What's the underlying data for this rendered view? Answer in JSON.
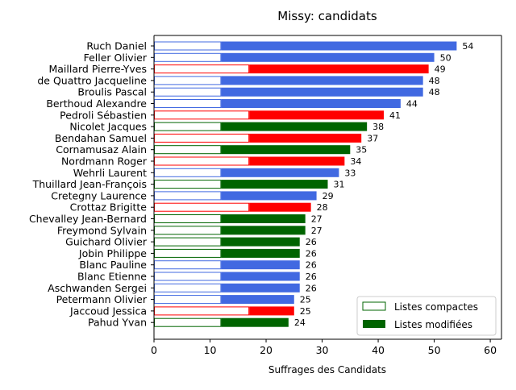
{
  "chart_data": {
    "type": "bar",
    "orientation": "horizontal",
    "stacked": true,
    "title": "Missy: candidats",
    "xlabel": "Suffrages des Candidats",
    "xlim": [
      0,
      62
    ],
    "x_ticks": [
      "0",
      "10",
      "20",
      "30",
      "40",
      "50",
      "60"
    ],
    "grid": false,
    "legend_position": "lower right",
    "legend": {
      "compact_label": "Listes compactes",
      "modified_label": "Listes modifiées"
    },
    "candidates": [
      {
        "name": "Ruch Daniel",
        "compact": 12,
        "total": 54,
        "color": "#4169e1"
      },
      {
        "name": "Feller Olivier",
        "compact": 12,
        "total": 50,
        "color": "#4169e1"
      },
      {
        "name": "Maillard Pierre-Yves",
        "compact": 17,
        "total": 49,
        "color": "#ff0000"
      },
      {
        "name": "de Quattro Jacqueline",
        "compact": 12,
        "total": 48,
        "color": "#4169e1"
      },
      {
        "name": "Broulis Pascal",
        "compact": 12,
        "total": 48,
        "color": "#4169e1"
      },
      {
        "name": "Berthoud Alexandre",
        "compact": 12,
        "total": 44,
        "color": "#4169e1"
      },
      {
        "name": "Pedroli Sébastien",
        "compact": 17,
        "total": 41,
        "color": "#ff0000"
      },
      {
        "name": "Nicolet Jacques",
        "compact": 12,
        "total": 38,
        "color": "#006400"
      },
      {
        "name": "Bendahan Samuel",
        "compact": 17,
        "total": 37,
        "color": "#ff0000"
      },
      {
        "name": "Cornamusaz Alain",
        "compact": 12,
        "total": 35,
        "color": "#006400"
      },
      {
        "name": "Nordmann Roger",
        "compact": 17,
        "total": 34,
        "color": "#ff0000"
      },
      {
        "name": "Wehrli Laurent",
        "compact": 12,
        "total": 33,
        "color": "#4169e1"
      },
      {
        "name": "Thuillard Jean-François",
        "compact": 12,
        "total": 31,
        "color": "#006400"
      },
      {
        "name": "Cretegny Laurence",
        "compact": 12,
        "total": 29,
        "color": "#4169e1"
      },
      {
        "name": "Crottaz Brigitte",
        "compact": 17,
        "total": 28,
        "color": "#ff0000"
      },
      {
        "name": "Chevalley Jean-Bernard",
        "compact": 12,
        "total": 27,
        "color": "#006400"
      },
      {
        "name": "Freymond Sylvain",
        "compact": 12,
        "total": 27,
        "color": "#006400"
      },
      {
        "name": "Guichard Olivier",
        "compact": 12,
        "total": 26,
        "color": "#006400"
      },
      {
        "name": "Jobin Philippe",
        "compact": 12,
        "total": 26,
        "color": "#006400"
      },
      {
        "name": "Blanc Pauline",
        "compact": 12,
        "total": 26,
        "color": "#4169e1"
      },
      {
        "name": "Blanc Etienne",
        "compact": 12,
        "total": 26,
        "color": "#4169e1"
      },
      {
        "name": "Aschwanden Sergei",
        "compact": 12,
        "total": 26,
        "color": "#4169e1"
      },
      {
        "name": "Petermann Olivier",
        "compact": 12,
        "total": 25,
        "color": "#4169e1"
      },
      {
        "name": "Jaccoud Jessica",
        "compact": 17,
        "total": 25,
        "color": "#ff0000"
      },
      {
        "name": "Pahud Yvan",
        "compact": 12,
        "total": 24,
        "color": "#006400"
      }
    ]
  },
  "colors": {
    "legend_swatch": "#006400",
    "axis": "#000000"
  }
}
